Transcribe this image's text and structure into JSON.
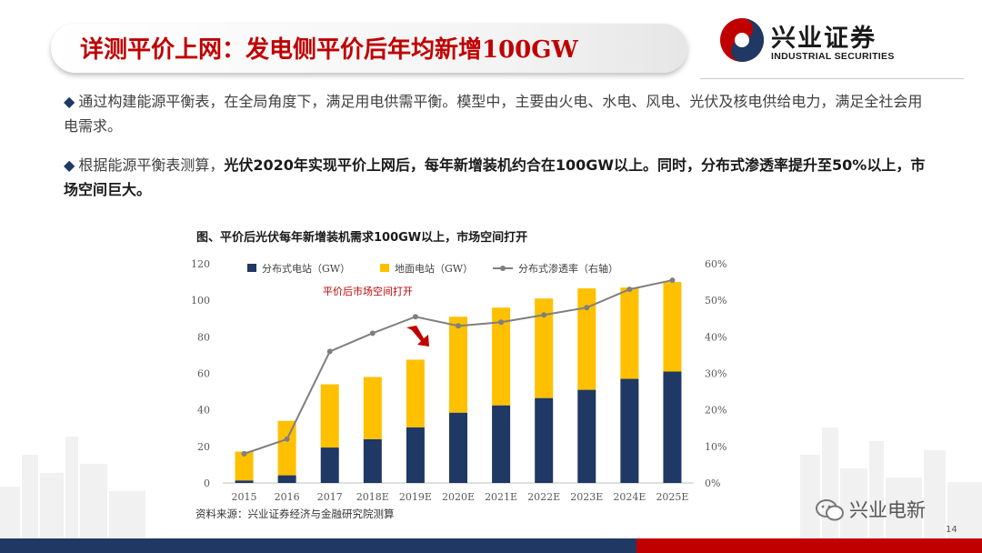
{
  "header": {
    "title": "详测平价上网：发电侧平价后年均新增100GW",
    "logo_cn": "兴业证券",
    "logo_en": "INDUSTRIAL SECURITIES"
  },
  "bullets": [
    {
      "text": "通过构建能源平衡表，在全局角度下，满足用电供需平衡。模型中，主要由火电、水电、风电、光伏及核电供给电力，满足全社会用电需求。"
    },
    {
      "pre": "根据能源平衡表测算，",
      "bold": "光伏2020年实现平价上网后，每年新增装机约合在100GW以上。同时，分布式渗透率提升至50%以上，市场空间巨大。"
    }
  ],
  "chart_data": {
    "type": "bar",
    "title": "图、平价后光伏每年新增装机需求100GW以上，市场空间打开",
    "categories": [
      "2015",
      "2016",
      "2017",
      "2018E",
      "2019E",
      "2020E",
      "2021E",
      "2022E",
      "2023E",
      "2024E",
      "2025E"
    ],
    "series": [
      {
        "name": "分布式电站（GW）",
        "type": "bar",
        "stack": "total",
        "color": "#1f3864",
        "values": [
          1.4,
          4.2,
          19.4,
          24,
          30.5,
          38.5,
          42.5,
          46.5,
          51,
          57,
          61
        ]
      },
      {
        "name": "地面电站（GW）",
        "type": "bar",
        "stack": "total",
        "color": "#ffc000",
        "values": [
          15.8,
          29.8,
          34.6,
          34,
          37,
          52.5,
          53.5,
          54.5,
          55.5,
          50,
          49
        ]
      },
      {
        "name": "分布式渗透率（右轴）",
        "type": "line",
        "axis": "right",
        "color": "#7f7f7f",
        "values": [
          0.08,
          0.12,
          0.36,
          0.41,
          0.455,
          0.43,
          0.44,
          0.46,
          0.48,
          0.53,
          0.555
        ]
      }
    ],
    "ylim": [
      0,
      120
    ],
    "yticks": [
      0,
      20,
      40,
      60,
      80,
      100,
      120
    ],
    "y2lim": [
      0,
      0.6
    ],
    "y2ticks": [
      "0%",
      "10%",
      "20%",
      "30%",
      "40%",
      "50%",
      "60%"
    ],
    "annotation": "平价后市场空间打开",
    "legend_position": "top",
    "grid": false
  },
  "source": "资料来源：兴业证券经济与金融研究院测算",
  "page_number": "14",
  "watermark": "兴业电新",
  "colors": {
    "title_red": "#c00000",
    "navy": "#1f3864",
    "gold": "#ffc000",
    "line_gray": "#7f7f7f"
  }
}
